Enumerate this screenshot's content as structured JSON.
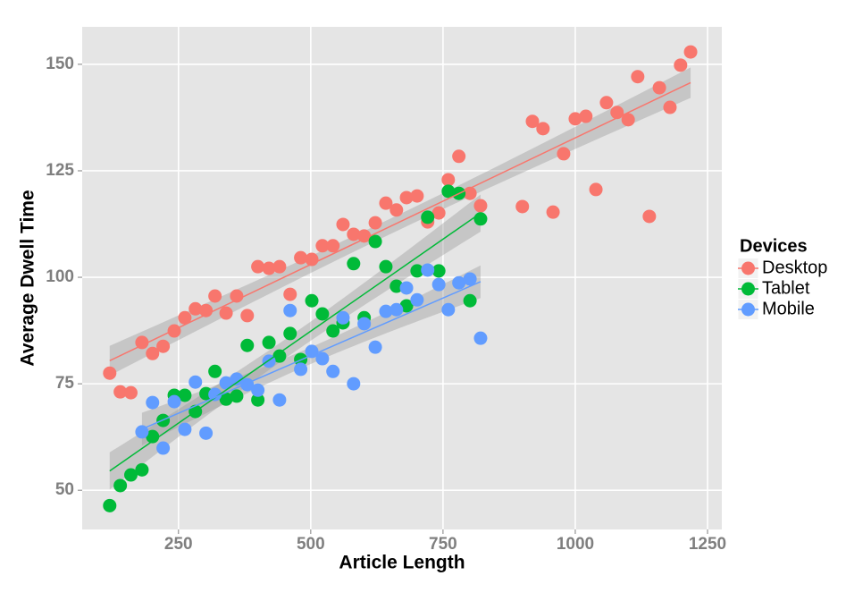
{
  "chart_data": {
    "type": "scatter",
    "x_label": "Article Length",
    "y_label": "Average Dwell Time",
    "legend_title": "Devices",
    "legend_position": "right",
    "xlim": [
      68,
      1277
    ],
    "ylim": [
      40.8,
      158.8
    ],
    "xticks": [
      250,
      500,
      750,
      1000,
      1250
    ],
    "yticks": [
      50,
      75,
      100,
      125,
      150
    ],
    "grid": true,
    "fit": "linear",
    "series": [
      {
        "name": "Desktop",
        "color": "#F8766D",
        "x": [
          120,
          140,
          160,
          181,
          201,
          221,
          242,
          262,
          282,
          302,
          319,
          340,
          360,
          380,
          400,
          421,
          441,
          461,
          481,
          502,
          522,
          542,
          561,
          581,
          601,
          622,
          642,
          662,
          681,
          701,
          721,
          742,
          760,
          780,
          801,
          821,
          900,
          919,
          939,
          958,
          978,
          1000,
          1020,
          1039,
          1059,
          1079,
          1100,
          1118,
          1140,
          1159,
          1179,
          1199,
          1218
        ],
        "values": [
          77.5,
          73.1,
          72.9,
          84.7,
          82.1,
          83.8,
          87.4,
          90.5,
          92.6,
          92.2,
          95.6,
          91.6,
          95.6,
          91.0,
          102.5,
          102.1,
          102.5,
          96.0,
          104.6,
          104.2,
          107.4,
          107.4,
          112.4,
          110.1,
          109.7,
          112.8,
          117.4,
          115.8,
          118.7,
          119.1,
          113.0,
          115.1,
          122.9,
          128.4,
          119.7,
          116.8,
          116.6,
          136.6,
          134.9,
          115.3,
          129.0,
          137.2,
          137.8,
          120.6,
          141.0,
          138.7,
          137.0,
          147.1,
          114.3,
          144.5,
          139.9,
          149.8,
          152.9
        ]
      },
      {
        "name": "Tablet",
        "color": "#00BA38",
        "x": [
          120,
          140,
          160,
          181,
          201,
          221,
          242,
          262,
          282,
          302,
          319,
          340,
          360,
          380,
          400,
          421,
          441,
          461,
          481,
          502,
          522,
          542,
          561,
          581,
          601,
          622,
          642,
          662,
          681,
          701,
          721,
          742,
          760,
          780,
          801,
          821
        ],
        "values": [
          46.4,
          51.1,
          53.6,
          54.8,
          62.6,
          66.4,
          72.3,
          72.3,
          68.5,
          72.7,
          77.9,
          71.4,
          72.1,
          84.0,
          71.2,
          84.7,
          81.5,
          86.8,
          80.7,
          94.5,
          91.4,
          87.4,
          89.3,
          103.2,
          90.5,
          108.4,
          102.5,
          97.9,
          93.3,
          101.5,
          114.1,
          101.5,
          120.2,
          119.7,
          94.5,
          113.7
        ]
      },
      {
        "name": "Mobile",
        "color": "#619CFF",
        "x": [
          181,
          201,
          221,
          242,
          262,
          282,
          302,
          319,
          340,
          360,
          380,
          400,
          421,
          441,
          461,
          481,
          502,
          522,
          542,
          561,
          581,
          601,
          622,
          642,
          662,
          681,
          701,
          721,
          742,
          760,
          780,
          801,
          821
        ],
        "values": [
          63.7,
          70.6,
          59.9,
          70.8,
          64.3,
          75.4,
          63.4,
          72.5,
          75.2,
          76.1,
          74.8,
          73.5,
          80.3,
          71.2,
          92.2,
          78.4,
          82.6,
          80.9,
          77.9,
          90.5,
          75.0,
          89.1,
          83.6,
          92.0,
          92.4,
          97.5,
          94.7,
          101.7,
          98.3,
          92.4,
          98.7,
          99.6,
          85.7
        ]
      }
    ]
  }
}
